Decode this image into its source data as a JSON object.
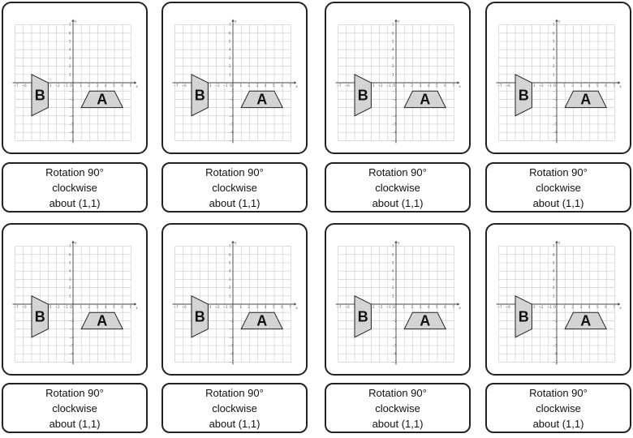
{
  "cards": [
    {
      "title": "Rotation 90°",
      "direction": "clockwise",
      "center": "about (1,1)"
    },
    {
      "title": "Rotation 90°",
      "direction": "clockwise",
      "center": "about (1,1)"
    },
    {
      "title": "Rotation 90°",
      "direction": "clockwise",
      "center": "about (1,1)"
    },
    {
      "title": "Rotation 90°",
      "direction": "clockwise",
      "center": "about (1,1)"
    },
    {
      "title": "Rotation 90°",
      "direction": "clockwise",
      "center": "about (1,1)"
    },
    {
      "title": "Rotation 90°",
      "direction": "clockwise",
      "center": "about (1,1)"
    },
    {
      "title": "Rotation 90°",
      "direction": "clockwise",
      "center": "about (1,1)"
    },
    {
      "title": "Rotation 90°",
      "direction": "clockwise",
      "center": "about (1,1)"
    }
  ],
  "grid": {
    "x_range": [
      -7,
      7
    ],
    "y_range": [
      -7,
      7
    ],
    "x_axis_label": "x",
    "y_axis_label": "y",
    "origin_label": "O",
    "x_ticks": [
      "−7",
      "−6",
      "−5",
      "−4",
      "−3",
      "−2",
      "−1",
      "1",
      "2",
      "3",
      "4",
      "5",
      "6",
      "7"
    ],
    "y_ticks": [
      "7",
      "6",
      "5",
      "4",
      "3",
      "2",
      "1",
      "−1",
      "−2",
      "−3",
      "−4",
      "−5",
      "−6",
      "−7"
    ]
  },
  "shapes": {
    "A": {
      "label": "A",
      "fill": "#d4d4d4",
      "points": [
        [
          2,
          -1
        ],
        [
          5,
          -1
        ],
        [
          6,
          -3
        ],
        [
          1,
          -3
        ]
      ]
    },
    "B": {
      "label": "B",
      "fill": "#d4d4d4",
      "points": [
        [
          -5,
          1
        ],
        [
          -3,
          0
        ],
        [
          -3,
          -3
        ],
        [
          -5,
          -4
        ]
      ]
    }
  }
}
